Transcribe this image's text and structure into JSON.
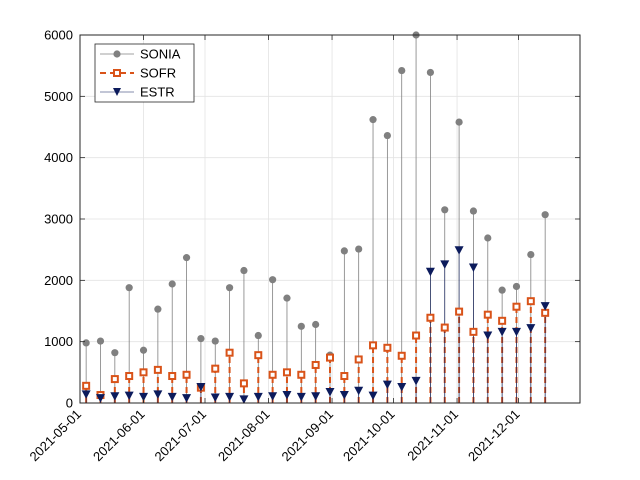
{
  "chart_data": {
    "type": "stem",
    "title": "",
    "xlabel": "",
    "ylabel": "",
    "x_range": [
      "2021-05-01",
      "2021-12-31"
    ],
    "ylim": [
      0,
      6000
    ],
    "yticks": [
      0,
      1000,
      2000,
      3000,
      4000,
      5000,
      6000
    ],
    "xticks": [
      "2021-05-01",
      "2021-06-01",
      "2021-07-01",
      "2021-08-01",
      "2021-09-01",
      "2021-10-01",
      "2021-11-01",
      "2021-12-01"
    ],
    "grid": true,
    "legend_position": "top-left",
    "colors": {
      "SONIA": "#808080",
      "SOFR": "#d95319",
      "ESTR": "#0c1b5c"
    },
    "series": [
      {
        "name": "SONIA",
        "marker": "circle",
        "line": "solid",
        "points": [
          {
            "x": "2021-05-04",
            "y": 980
          },
          {
            "x": "2021-05-11",
            "y": 1010
          },
          {
            "x": "2021-05-18",
            "y": 820
          },
          {
            "x": "2021-05-25",
            "y": 1880
          },
          {
            "x": "2021-06-01",
            "y": 860
          },
          {
            "x": "2021-06-08",
            "y": 1530
          },
          {
            "x": "2021-06-15",
            "y": 1940
          },
          {
            "x": "2021-06-22",
            "y": 2370
          },
          {
            "x": "2021-06-29",
            "y": 1050
          },
          {
            "x": "2021-07-06",
            "y": 1010
          },
          {
            "x": "2021-07-13",
            "y": 1880
          },
          {
            "x": "2021-07-20",
            "y": 2160
          },
          {
            "x": "2021-07-27",
            "y": 1100
          },
          {
            "x": "2021-08-03",
            "y": 2010
          },
          {
            "x": "2021-08-10",
            "y": 1710
          },
          {
            "x": "2021-08-17",
            "y": 1250
          },
          {
            "x": "2021-08-24",
            "y": 1280
          },
          {
            "x": "2021-08-31",
            "y": 780
          },
          {
            "x": "2021-09-07",
            "y": 2480
          },
          {
            "x": "2021-09-14",
            "y": 2510
          },
          {
            "x": "2021-09-21",
            "y": 4620
          },
          {
            "x": "2021-09-28",
            "y": 4360
          },
          {
            "x": "2021-10-05",
            "y": 5420
          },
          {
            "x": "2021-10-12",
            "y": 6000
          },
          {
            "x": "2021-10-19",
            "y": 5390
          },
          {
            "x": "2021-10-26",
            "y": 3150
          },
          {
            "x": "2021-11-02",
            "y": 4580
          },
          {
            "x": "2021-11-09",
            "y": 3130
          },
          {
            "x": "2021-11-16",
            "y": 2690
          },
          {
            "x": "2021-11-23",
            "y": 1840
          },
          {
            "x": "2021-11-30",
            "y": 1900
          },
          {
            "x": "2021-12-07",
            "y": 2420
          },
          {
            "x": "2021-12-14",
            "y": 3070
          }
        ]
      },
      {
        "name": "SOFR",
        "marker": "square",
        "line": "dashed",
        "points": [
          {
            "x": "2021-05-04",
            "y": 280
          },
          {
            "x": "2021-05-11",
            "y": 130
          },
          {
            "x": "2021-05-18",
            "y": 390
          },
          {
            "x": "2021-05-25",
            "y": 440
          },
          {
            "x": "2021-06-01",
            "y": 500
          },
          {
            "x": "2021-06-08",
            "y": 540
          },
          {
            "x": "2021-06-15",
            "y": 440
          },
          {
            "x": "2021-06-22",
            "y": 460
          },
          {
            "x": "2021-06-29",
            "y": 250
          },
          {
            "x": "2021-07-06",
            "y": 560
          },
          {
            "x": "2021-07-13",
            "y": 820
          },
          {
            "x": "2021-07-20",
            "y": 320
          },
          {
            "x": "2021-07-27",
            "y": 780
          },
          {
            "x": "2021-08-03",
            "y": 460
          },
          {
            "x": "2021-08-10",
            "y": 500
          },
          {
            "x": "2021-08-17",
            "y": 460
          },
          {
            "x": "2021-08-24",
            "y": 620
          },
          {
            "x": "2021-08-31",
            "y": 740
          },
          {
            "x": "2021-09-07",
            "y": 440
          },
          {
            "x": "2021-09-14",
            "y": 710
          },
          {
            "x": "2021-09-21",
            "y": 940
          },
          {
            "x": "2021-09-28",
            "y": 900
          },
          {
            "x": "2021-10-05",
            "y": 770
          },
          {
            "x": "2021-10-12",
            "y": 1100
          },
          {
            "x": "2021-10-19",
            "y": 1390
          },
          {
            "x": "2021-10-26",
            "y": 1230
          },
          {
            "x": "2021-11-02",
            "y": 1490
          },
          {
            "x": "2021-11-09",
            "y": 1160
          },
          {
            "x": "2021-11-16",
            "y": 1440
          },
          {
            "x": "2021-11-23",
            "y": 1340
          },
          {
            "x": "2021-11-30",
            "y": 1570
          },
          {
            "x": "2021-12-07",
            "y": 1660
          },
          {
            "x": "2021-12-14",
            "y": 1470
          }
        ]
      },
      {
        "name": "ESTR",
        "marker": "triangle-down",
        "line": "solid",
        "points": [
          {
            "x": "2021-05-04",
            "y": 140
          },
          {
            "x": "2021-05-11",
            "y": 80
          },
          {
            "x": "2021-05-18",
            "y": 110
          },
          {
            "x": "2021-05-25",
            "y": 120
          },
          {
            "x": "2021-06-01",
            "y": 100
          },
          {
            "x": "2021-06-08",
            "y": 140
          },
          {
            "x": "2021-06-15",
            "y": 100
          },
          {
            "x": "2021-06-22",
            "y": 80
          },
          {
            "x": "2021-06-29",
            "y": 260
          },
          {
            "x": "2021-07-06",
            "y": 90
          },
          {
            "x": "2021-07-13",
            "y": 100
          },
          {
            "x": "2021-07-20",
            "y": 60
          },
          {
            "x": "2021-07-27",
            "y": 100
          },
          {
            "x": "2021-08-03",
            "y": 110
          },
          {
            "x": "2021-08-10",
            "y": 130
          },
          {
            "x": "2021-08-17",
            "y": 100
          },
          {
            "x": "2021-08-24",
            "y": 110
          },
          {
            "x": "2021-08-31",
            "y": 180
          },
          {
            "x": "2021-09-07",
            "y": 130
          },
          {
            "x": "2021-09-14",
            "y": 200
          },
          {
            "x": "2021-09-21",
            "y": 120
          },
          {
            "x": "2021-09-28",
            "y": 300
          },
          {
            "x": "2021-10-05",
            "y": 260
          },
          {
            "x": "2021-10-12",
            "y": 360
          },
          {
            "x": "2021-10-19",
            "y": 2140
          },
          {
            "x": "2021-10-26",
            "y": 2260
          },
          {
            "x": "2021-11-02",
            "y": 2490
          },
          {
            "x": "2021-11-09",
            "y": 2210
          },
          {
            "x": "2021-11-16",
            "y": 1100
          },
          {
            "x": "2021-11-23",
            "y": 1160
          },
          {
            "x": "2021-11-30",
            "y": 1160
          },
          {
            "x": "2021-12-07",
            "y": 1220
          },
          {
            "x": "2021-12-14",
            "y": 1580
          }
        ]
      }
    ]
  }
}
